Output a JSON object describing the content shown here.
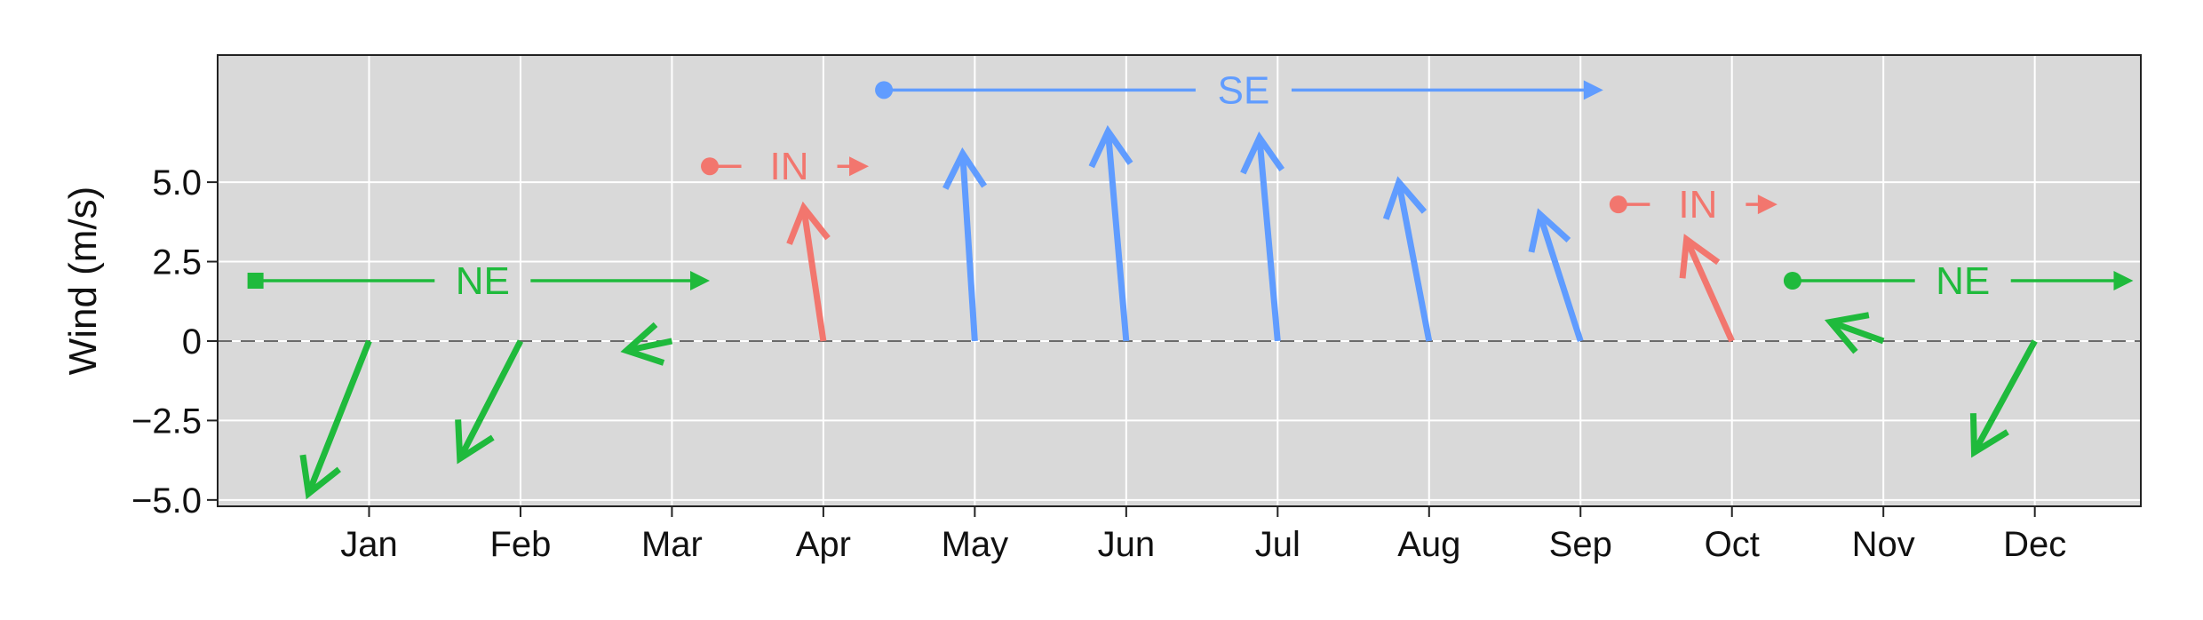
{
  "chart_data": {
    "type": "vector",
    "ylabel": "Wind (m/s)",
    "ylim": [
      -5.2,
      9.0
    ],
    "yticks": [
      {
        "value": 5.0,
        "label": "5.0"
      },
      {
        "value": 2.5,
        "label": "2.5"
      },
      {
        "value": 0,
        "label": "0"
      },
      {
        "value": -2.5,
        "label": "−2.5"
      },
      {
        "value": -5.0,
        "label": "−5.0"
      }
    ],
    "xlim": [
      0,
      12.7
    ],
    "months": [
      "Jan",
      "Feb",
      "Mar",
      "Apr",
      "May",
      "Jun",
      "Jul",
      "Aug",
      "Sep",
      "Oct",
      "Nov",
      "Dec"
    ],
    "colors": {
      "NE": "#1fba3c",
      "IN": "#f2766e",
      "SE": "#609cff",
      "panel": "#d9d9d9",
      "grid": "#ffffff",
      "zero_line": "#6b6b6b"
    },
    "vectors": [
      {
        "month": "Jan",
        "season": "NE",
        "u": -0.4,
        "v": -4.8
      },
      {
        "month": "Feb",
        "season": "NE",
        "u": -0.4,
        "v": -3.7
      },
      {
        "month": "Mar",
        "season": "NE",
        "u": -0.3,
        "v": -0.3
      },
      {
        "month": "Apr",
        "season": "IN",
        "u": -0.13,
        "v": 4.2
      },
      {
        "month": "May",
        "season": "SE",
        "u": -0.08,
        "v": 5.9
      },
      {
        "month": "Jun",
        "season": "SE",
        "u": -0.12,
        "v": 6.6
      },
      {
        "month": "Jul",
        "season": "SE",
        "u": -0.12,
        "v": 6.4
      },
      {
        "month": "Aug",
        "season": "SE",
        "u": -0.2,
        "v": 5.0
      },
      {
        "month": "Sep",
        "season": "SE",
        "u": -0.27,
        "v": 4.0
      },
      {
        "month": "Oct",
        "season": "IN",
        "u": -0.3,
        "v": 3.2
      },
      {
        "month": "Nov",
        "season": "NE",
        "u": -0.35,
        "v": 0.6
      },
      {
        "month": "Dec",
        "season": "NE",
        "u": -0.4,
        "v": -3.5
      }
    ],
    "season_spans": [
      {
        "label": "NE",
        "season": "NE",
        "x_start": 0.25,
        "x_end": 3.25,
        "y": 1.9,
        "start_marker": "square"
      },
      {
        "label": "IN",
        "season": "IN",
        "x_start": 3.25,
        "x_end": 4.3,
        "y": 5.5,
        "start_marker": "circle"
      },
      {
        "label": "SE",
        "season": "SE",
        "x_start": 4.4,
        "x_end": 9.15,
        "y": 7.9,
        "start_marker": "circle"
      },
      {
        "label": "IN",
        "season": "IN",
        "x_start": 9.25,
        "x_end": 10.3,
        "y": 4.3,
        "start_marker": "circle"
      },
      {
        "label": "NE",
        "season": "NE",
        "x_start": 10.4,
        "x_end": 12.65,
        "y": 1.9,
        "start_marker": "circle"
      }
    ]
  }
}
